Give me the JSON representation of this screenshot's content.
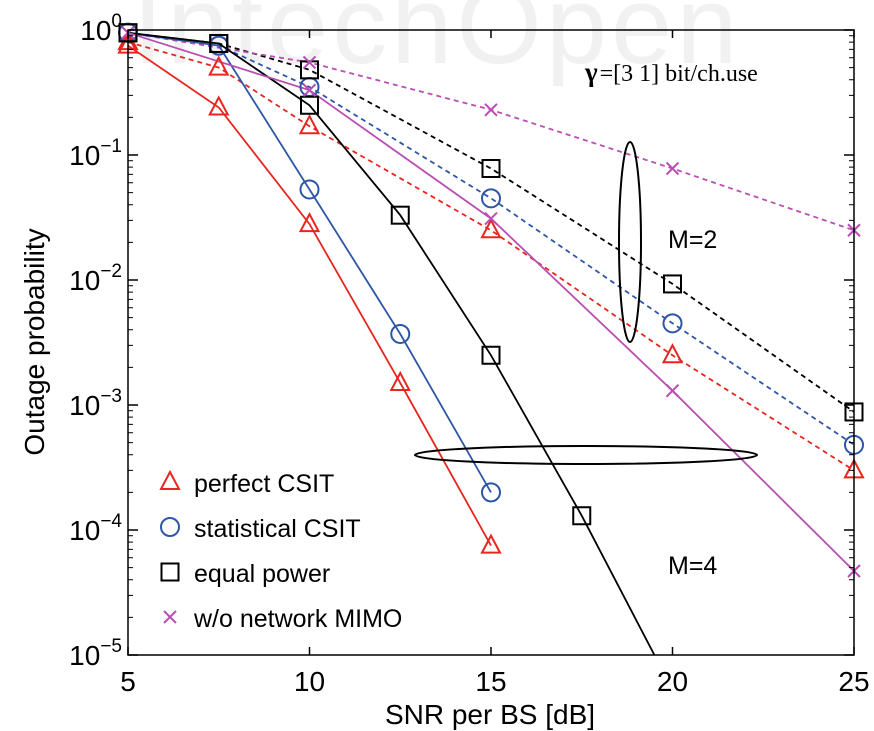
{
  "watermark": "IntechOpen",
  "chart_data": {
    "type": "line",
    "xlabel": "SNR per BS [dB]",
    "ylabel": "Outage probability",
    "xlim": [
      5,
      25
    ],
    "ylim": [
      1e-05,
      1
    ],
    "yscale": "log",
    "x_ticks": [
      5,
      10,
      15,
      20,
      25
    ],
    "x_tick_labels": [
      "5",
      "10",
      "15",
      "20",
      "25"
    ],
    "y_ticks": [
      1,
      0.1,
      0.01,
      0.001,
      0.0001,
      1e-05
    ],
    "y_tick_labels": [
      {
        "base": "10",
        "exp": "0"
      },
      {
        "base": "10",
        "exp": "−1"
      },
      {
        "base": "10",
        "exp": "−2"
      },
      {
        "base": "10",
        "exp": "−3"
      },
      {
        "base": "10",
        "exp": "−4"
      },
      {
        "base": "10",
        "exp": "−5"
      }
    ],
    "grid": false,
    "legend_position": "bottom-left",
    "annotations": {
      "gamma_symbol": "γ",
      "gamma_text": "=[3 1] bit/ch.use",
      "m2_label": "M=2",
      "m4_label": "M=4"
    },
    "legend": [
      {
        "label": "perfect CSIT",
        "marker": "triangle",
        "color": "#e8261f"
      },
      {
        "label": "statistical CSIT",
        "marker": "circle",
        "color": "#2f56a6"
      },
      {
        "label": "equal power",
        "marker": "square",
        "color": "#000000"
      },
      {
        "label": "w/o network MIMO",
        "marker": "x",
        "color": "#b94fb3"
      }
    ],
    "series": [
      {
        "scheme": "perfect CSIT",
        "group": "M=2",
        "dash": "dashed",
        "color": "#e8261f",
        "marker": "triangle",
        "x": [
          5,
          7.5,
          10,
          15,
          20,
          25
        ],
        "y": [
          0.8,
          0.5,
          0.17,
          0.025,
          0.0025,
          0.0003
        ]
      },
      {
        "scheme": "statistical CSIT",
        "group": "M=2",
        "dash": "dashed",
        "color": "#2f56a6",
        "marker": "circle",
        "x": [
          5,
          7.5,
          10,
          15,
          20,
          25
        ],
        "y": [
          0.95,
          0.75,
          0.35,
          0.045,
          0.0045,
          0.00048
        ]
      },
      {
        "scheme": "equal power",
        "group": "M=2",
        "dash": "dashed",
        "color": "#000000",
        "marker": "square",
        "x": [
          5,
          7.5,
          10,
          15,
          20,
          25
        ],
        "y": [
          0.95,
          0.78,
          0.48,
          0.078,
          0.0093,
          0.00088
        ]
      },
      {
        "scheme": "w/o network MIMO",
        "group": "M=2",
        "dash": "dashed",
        "color": "#b94fb3",
        "marker": "x",
        "x": [
          5,
          10,
          15,
          20,
          25
        ],
        "y": [
          0.95,
          0.55,
          0.23,
          0.078,
          0.025
        ]
      },
      {
        "scheme": "perfect CSIT",
        "group": "M=4",
        "dash": "solid",
        "color": "#e8261f",
        "marker": "triangle",
        "x": [
          5,
          7.5,
          10,
          12.5,
          15
        ],
        "y": [
          0.75,
          0.24,
          0.028,
          0.0015,
          7.5e-05
        ]
      },
      {
        "scheme": "statistical CSIT",
        "group": "M=4",
        "dash": "solid",
        "color": "#2f56a6",
        "marker": "circle",
        "x": [
          5,
          7.5,
          10,
          12.5,
          15
        ],
        "y": [
          0.95,
          0.75,
          0.053,
          0.0037,
          0.0002
        ]
      },
      {
        "scheme": "equal power",
        "group": "M=4",
        "dash": "solid",
        "color": "#000000",
        "marker": "square",
        "x": [
          5,
          7.5,
          10,
          12.5,
          15,
          17.5,
          19.5
        ],
        "y": [
          0.95,
          0.78,
          0.25,
          0.033,
          0.0025,
          0.00013,
          1e-05
        ]
      },
      {
        "scheme": "w/o network MIMO",
        "group": "M=4",
        "dash": "solid",
        "color": "#b94fb3",
        "marker": "x",
        "x": [
          5,
          10,
          15,
          20,
          25
        ],
        "y": [
          0.95,
          0.33,
          0.031,
          0.0013,
          4.7e-05
        ]
      }
    ]
  }
}
